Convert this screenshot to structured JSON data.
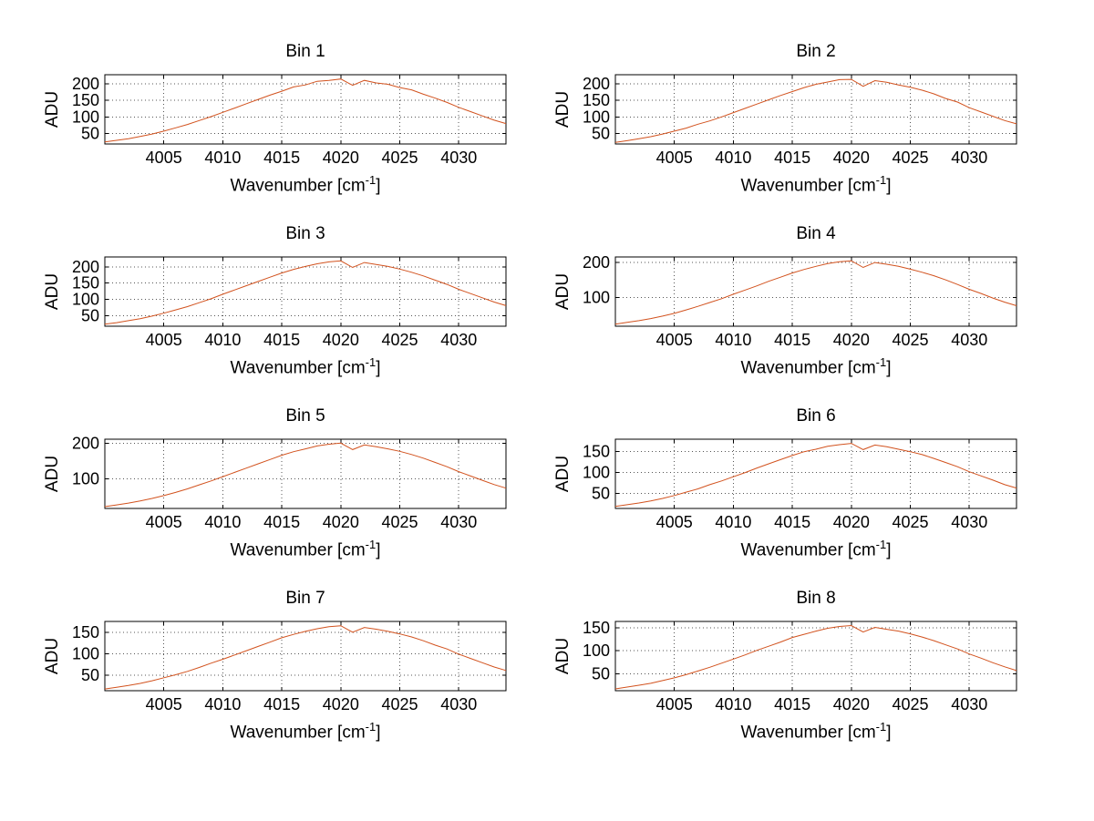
{
  "figure": {
    "background": "#ffffff",
    "axis_color": "#000000",
    "grid_color": "#555555",
    "grid_style": "dotted"
  },
  "chart_data": {
    "type": "line",
    "layout": "4x2-grid",
    "line_color": "#d2521e",
    "grid": true,
    "ylabel": "ADU",
    "xlabel": "Wavenumber [cm^-1]",
    "xlabel_parts": {
      "base": "Wavenumber [cm",
      "sup": "-1",
      "end": "]"
    },
    "xlim": [
      4000,
      4034
    ],
    "xticks": [
      4005,
      4010,
      4015,
      4020,
      4025,
      4030
    ],
    "x": [
      4000,
      4001,
      4002,
      4003,
      4004,
      4005,
      4006,
      4007,
      4008,
      4009,
      4010,
      4011,
      4012,
      4013,
      4014,
      4015,
      4016,
      4017,
      4018,
      4019,
      4020,
      4021,
      4022,
      4023,
      4024,
      4025,
      4026,
      4027,
      4028,
      4029,
      4030,
      4031,
      4032,
      4033,
      4034
    ],
    "subplots": [
      {
        "title": "Bin 1",
        "yticks": [
          50,
          100,
          150,
          200
        ],
        "ylim": [
          18,
          228
        ],
        "values": [
          24,
          29,
          34,
          41,
          48,
          57,
          67,
          77,
          89,
          101,
          114,
          127,
          140,
          153,
          166,
          178,
          191,
          197,
          208,
          211,
          215,
          196,
          211,
          203,
          199,
          189,
          182,
          169,
          157,
          144,
          129,
          116,
          103,
          90,
          80
        ]
      },
      {
        "title": "Bin 2",
        "yticks": [
          50,
          100,
          150,
          200
        ],
        "ylim": [
          18,
          228
        ],
        "values": [
          23,
          28,
          34,
          40,
          48,
          57,
          66,
          78,
          88,
          100,
          113,
          126,
          139,
          152,
          165,
          177,
          189,
          199,
          206,
          213,
          214,
          193,
          210,
          205,
          197,
          190,
          181,
          170,
          156,
          145,
          128,
          115,
          102,
          89,
          79
        ]
      },
      {
        "title": "Bin 3",
        "yticks": [
          50,
          100,
          150,
          200
        ],
        "ylim": [
          18,
          230
        ],
        "values": [
          24,
          29,
          35,
          41,
          49,
          58,
          68,
          78,
          90,
          102,
          116,
          129,
          142,
          155,
          168,
          181,
          192,
          201,
          209,
          215,
          218,
          198,
          213,
          207,
          201,
          193,
          183,
          172,
          159,
          146,
          131,
          118,
          105,
          92,
          81
        ]
      },
      {
        "title": "Bin 4",
        "yticks": [
          100,
          200
        ],
        "ylim": [
          17,
          216
        ],
        "values": [
          23,
          28,
          33,
          39,
          46,
          54,
          64,
          74,
          85,
          96,
          109,
          121,
          133,
          146,
          158,
          170,
          180,
          189,
          197,
          202,
          205,
          186,
          200,
          195,
          189,
          181,
          172,
          162,
          150,
          137,
          123,
          111,
          98,
          86,
          76
        ]
      },
      {
        "title": "Bin 5",
        "yticks": [
          100,
          200
        ],
        "ylim": [
          17,
          211
        ],
        "values": [
          22,
          27,
          32,
          38,
          45,
          53,
          62,
          72,
          83,
          94,
          106,
          118,
          130,
          142,
          154,
          166,
          176,
          184,
          192,
          197,
          200,
          182,
          195,
          190,
          184,
          177,
          168,
          158,
          146,
          134,
          120,
          108,
          96,
          84,
          74
        ]
      },
      {
        "title": "Bin 6",
        "yticks": [
          50,
          100,
          150
        ],
        "ylim": [
          14,
          180
        ],
        "values": [
          19,
          23,
          27,
          32,
          38,
          45,
          53,
          61,
          71,
          80,
          90,
          100,
          111,
          121,
          131,
          141,
          150,
          156,
          163,
          167,
          170,
          155,
          166,
          162,
          156,
          150,
          143,
          134,
          124,
          114,
          102,
          92,
          82,
          71,
          63
        ]
      },
      {
        "title": "Bin 7",
        "yticks": [
          50,
          100,
          150
        ],
        "ylim": [
          14,
          175
        ],
        "values": [
          18,
          22,
          26,
          31,
          37,
          44,
          51,
          59,
          68,
          78,
          87,
          97,
          107,
          117,
          127,
          137,
          145,
          152,
          158,
          163,
          165,
          150,
          161,
          157,
          152,
          146,
          139,
          130,
          120,
          111,
          99,
          89,
          79,
          69,
          61
        ]
      },
      {
        "title": "Bin 8",
        "yticks": [
          50,
          100,
          150
        ],
        "ylim": [
          13,
          164
        ],
        "values": [
          17,
          21,
          25,
          29,
          35,
          41,
          48,
          56,
          64,
          73,
          82,
          91,
          101,
          110,
          119,
          129,
          136,
          143,
          149,
          153,
          155,
          141,
          151,
          147,
          143,
          137,
          130,
          122,
          113,
          104,
          93,
          84,
          74,
          65,
          57
        ]
      }
    ]
  }
}
